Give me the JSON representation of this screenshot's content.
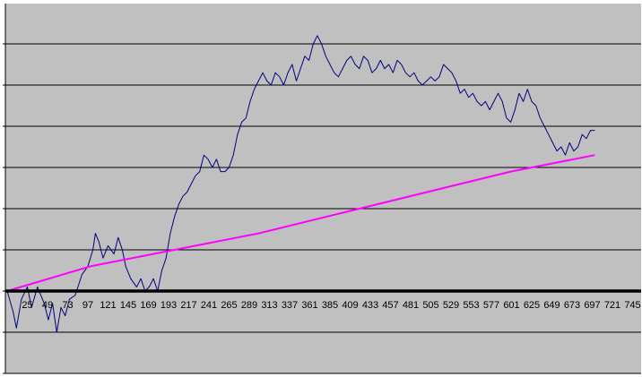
{
  "chart_data": {
    "type": "line",
    "title": "",
    "xlabel": "",
    "ylabel": "",
    "x_tick_labels": [
      "25",
      "49",
      "73",
      "97",
      "121",
      "145",
      "169",
      "193",
      "217",
      "241",
      "265",
      "289",
      "313",
      "337",
      "361",
      "385",
      "409",
      "433",
      "457",
      "481",
      "505",
      "529",
      "553",
      "577",
      "601",
      "625",
      "649",
      "673",
      "697",
      "721",
      "745"
    ],
    "xlim": [
      1,
      745
    ],
    "ylim": [
      -2,
      7
    ],
    "y_tick_labels_visible": false,
    "grid": "horizontal",
    "zero_axis": "thick black line at y = 0",
    "legend": "none",
    "colors": {
      "plot_background": "#c0c0c0",
      "gridline": "#000000",
      "series_price": "#000080",
      "series_trend": "#ff00ff"
    },
    "series": [
      {
        "type": "line",
        "x": [
          1,
          8,
          12,
          18,
          25,
          30,
          37,
          45,
          50,
          55,
          60,
          65,
          70,
          75,
          82,
          90,
          97,
          103,
          106,
          110,
          115,
          121,
          128,
          133,
          138,
          142,
          148,
          155,
          160,
          165,
          170,
          175,
          180,
          185,
          190,
          195,
          200,
          205,
          210,
          215,
          220,
          225,
          230,
          235,
          240,
          245,
          250,
          255,
          260,
          265,
          270,
          275,
          280,
          285,
          290,
          295,
          300,
          305,
          310,
          315,
          320,
          325,
          330,
          335,
          340,
          345,
          350,
          355,
          360,
          365,
          370,
          375,
          380,
          385,
          390,
          395,
          400,
          405,
          410,
          415,
          420,
          425,
          430,
          435,
          440,
          445,
          450,
          455,
          460,
          465,
          470,
          475,
          480,
          485,
          490,
          495,
          500,
          505,
          510,
          515,
          520,
          525,
          530,
          535,
          540,
          545,
          550,
          555,
          560,
          565,
          570,
          575,
          580,
          585,
          590,
          595,
          600,
          605,
          610,
          615,
          620,
          625,
          630,
          635,
          640,
          645,
          650,
          655,
          660,
          665,
          670,
          675,
          680,
          685,
          690,
          695,
          700
        ],
        "y": [
          0,
          -0.5,
          -0.9,
          -0.2,
          0.1,
          -0.4,
          0.1,
          -0.3,
          -0.7,
          -0.3,
          -1.0,
          -0.4,
          -0.6,
          -0.2,
          -0.1,
          0.4,
          0.6,
          1.0,
          1.4,
          1.2,
          0.8,
          1.1,
          0.9,
          1.3,
          1.0,
          0.6,
          0.3,
          0.1,
          0.3,
          0.0,
          0.1,
          0.3,
          0.0,
          0.5,
          0.8,
          1.4,
          1.8,
          2.1,
          2.3,
          2.4,
          2.6,
          2.8,
          2.9,
          3.3,
          3.2,
          3.0,
          3.2,
          2.9,
          2.9,
          3.0,
          3.3,
          3.8,
          4.1,
          4.2,
          4.6,
          4.9,
          5.1,
          5.3,
          5.1,
          5.0,
          5.3,
          5.2,
          5.0,
          5.3,
          5.5,
          5.1,
          5.4,
          5.7,
          5.6,
          6.0,
          6.2,
          6.0,
          5.7,
          5.5,
          5.3,
          5.2,
          5.4,
          5.6,
          5.7,
          5.5,
          5.4,
          5.7,
          5.6,
          5.3,
          5.4,
          5.6,
          5.4,
          5.5,
          5.3,
          5.6,
          5.5,
          5.3,
          5.2,
          5.3,
          5.1,
          5.0,
          5.1,
          5.2,
          5.1,
          5.2,
          5.5,
          5.4,
          5.3,
          5.1,
          4.8,
          4.9,
          4.7,
          4.8,
          4.6,
          4.5,
          4.6,
          4.4,
          4.6,
          4.8,
          4.6,
          4.2,
          4.1,
          4.4,
          4.8,
          4.6,
          4.9,
          4.6,
          4.5,
          4.2,
          4.0,
          3.8,
          3.6,
          3.4,
          3.5,
          3.3,
          3.6,
          3.4,
          3.5,
          3.8,
          3.7,
          3.9,
          3.9
        ]
      },
      {
        "type": "line",
        "x": [
          1,
          100,
          200,
          300,
          400,
          500,
          600,
          700
        ],
        "y": [
          0.0,
          0.6,
          1.0,
          1.4,
          1.9,
          2.4,
          2.9,
          3.3
        ]
      }
    ]
  }
}
